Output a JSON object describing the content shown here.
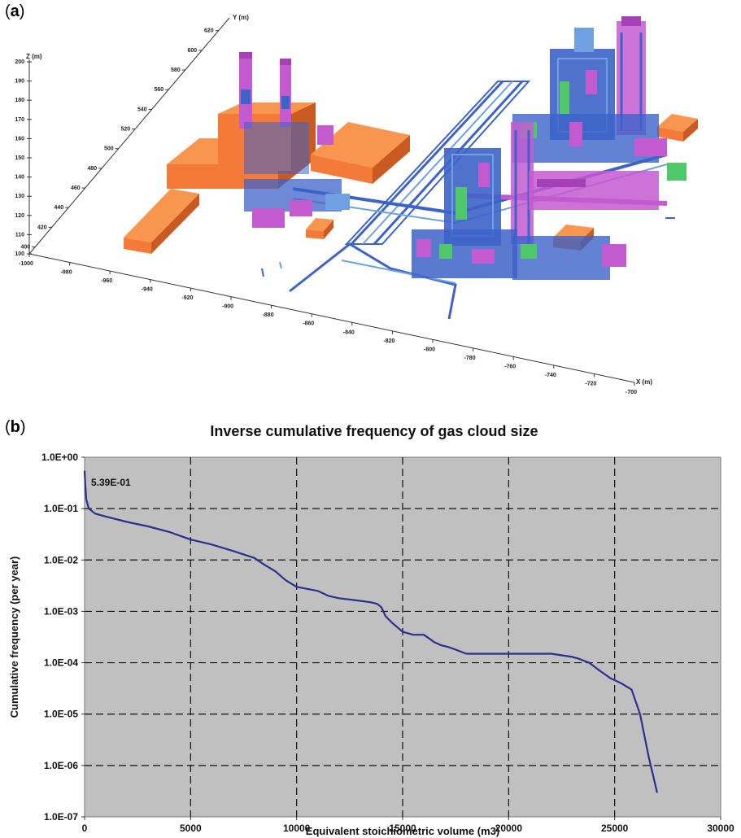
{
  "panel_a": {
    "label_prefix": "(",
    "label_letter": "a",
    "label_suffix": ")",
    "axis_y_label": "Y (m)",
    "axis_z_label": "Z (m)",
    "axis_x_label": "X (m)",
    "y_ticks": [
      "400",
      "420",
      "440",
      "460",
      "480",
      "500",
      "520",
      "540",
      "560",
      "580",
      "600",
      "620"
    ],
    "z_ticks": [
      "100",
      "110",
      "120",
      "130",
      "140",
      "150",
      "160",
      "170",
      "180",
      "190",
      "200"
    ],
    "x_ticks": [
      "-1000",
      "-980",
      "-960",
      "-940",
      "-920",
      "-900",
      "-880",
      "-860",
      "-840",
      "-820",
      "-800",
      "-780",
      "-760",
      "-740",
      "-720",
      "-700"
    ],
    "colors": {
      "building": "#f47a3a",
      "building_dark": "#c95a22",
      "piping": "#3d63c8",
      "vessel": "#c45ad0",
      "equipment_green": "#4fc86a",
      "steel": "#6fa0e0"
    }
  },
  "panel_b": {
    "label_prefix": "(",
    "label_letter": "b",
    "label_suffix": ")",
    "colors": {
      "plot_bg": "#c0c0c0",
      "line": "#2b2f8e",
      "grid": "#111111"
    }
  },
  "chart_data": {
    "type": "line",
    "title": "Inverse cumulative frequency of gas cloud size",
    "xlabel": "Equivalent stoichiometric volume (m3)",
    "ylabel": "Cumulative frequency (per year)",
    "xlim": [
      0,
      30000
    ],
    "ylim": [
      1e-07,
      1
    ],
    "y_scale": "log",
    "grid": true,
    "x_ticks": [
      "0",
      "5000",
      "10000",
      "15000",
      "20000",
      "25000",
      "30000"
    ],
    "y_ticks": [
      "1.0E+00",
      "1.0E-01",
      "1.0E-02",
      "1.0E-03",
      "1.0E-04",
      "1.0E-05",
      "1.0E-06",
      "1.0E-07"
    ],
    "annotation": "5.39E-01",
    "series": [
      {
        "x": [
          0,
          30,
          80,
          200,
          500,
          1000,
          2000,
          3000,
          4000,
          5000,
          6000,
          7000,
          8000,
          8500,
          9000,
          9500,
          10000,
          11000,
          11500,
          12000,
          13000,
          13500,
          13800,
          14000,
          14200,
          14500,
          15000,
          15500,
          16000,
          16500,
          16800,
          17200,
          17500,
          18000,
          18500,
          19000,
          20000,
          21000,
          22000,
          23000,
          23300,
          23800,
          24300,
          24800,
          25300,
          25800,
          26200,
          26600,
          27000
        ],
        "y": [
          0.539,
          0.3,
          0.15,
          0.1,
          0.08,
          0.07,
          0.055,
          0.045,
          0.035,
          0.025,
          0.02,
          0.015,
          0.011,
          0.008,
          0.006,
          0.004,
          0.003,
          0.0025,
          0.002,
          0.0018,
          0.0016,
          0.0015,
          0.0014,
          0.0012,
          0.0008,
          0.0006,
          0.0004,
          0.00035,
          0.00035,
          0.00025,
          0.00022,
          0.0002,
          0.00018,
          0.00015,
          0.00015,
          0.00015,
          0.00015,
          0.00015,
          0.00015,
          0.00013,
          0.00012,
          0.0001,
          7e-05,
          5e-05,
          4e-05,
          3e-05,
          1e-05,
          1.5e-06,
          3e-07
        ]
      }
    ]
  }
}
